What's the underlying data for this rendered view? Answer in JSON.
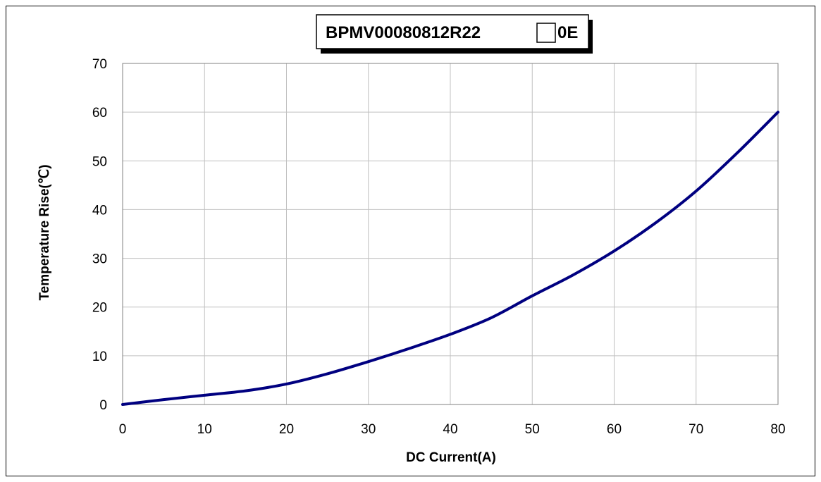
{
  "chart_data": {
    "type": "line",
    "title_prefix": "BPMV00080812R22",
    "title_suffix": "0E",
    "xlabel": "DC Current(A)",
    "ylabel": "Temperature Rise(℃)",
    "xlim": [
      0,
      80
    ],
    "ylim": [
      0,
      70
    ],
    "xticks": [
      0,
      10,
      20,
      30,
      40,
      50,
      60,
      70,
      80
    ],
    "yticks": [
      0,
      10,
      20,
      30,
      40,
      50,
      60,
      70
    ],
    "grid": true,
    "legend": "none",
    "series": [
      {
        "color": "#000080",
        "x": [
          0,
          5,
          10,
          15,
          20,
          25,
          30,
          35,
          40,
          45,
          50,
          55,
          60,
          65,
          70,
          75,
          80
        ],
        "y": [
          0,
          1.0,
          1.9,
          2.8,
          4.2,
          6.3,
          8.8,
          11.5,
          14.4,
          17.8,
          22.3,
          26.6,
          31.5,
          37.2,
          43.8,
          51.6,
          60.0
        ]
      }
    ]
  }
}
